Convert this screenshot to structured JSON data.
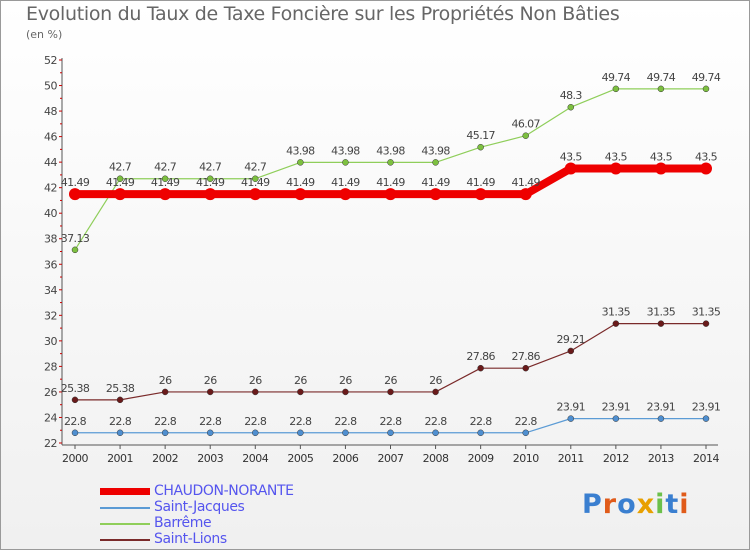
{
  "title": "Evolution du Taux de Taxe Foncière sur les Propriétés Non Bâties",
  "unit_label": "(en %)",
  "logo": {
    "letters": [
      "P",
      "r",
      "o",
      "x",
      "i",
      "t",
      "i"
    ],
    "colors": [
      "#3a7fd0",
      "#e05b1a",
      "#3a7fd0",
      "#e8a000",
      "#6cc04a",
      "#3a7fd0",
      "#e05b1a"
    ]
  },
  "chart_data": {
    "type": "line",
    "x": [
      "2000",
      "2001",
      "2002",
      "2003",
      "2004",
      "2005",
      "2006",
      "2007",
      "2008",
      "2009",
      "2010",
      "2011",
      "2012",
      "2013",
      "2014"
    ],
    "ylim": [
      22,
      52
    ],
    "yticks": [
      "22",
      "24",
      "26",
      "28",
      "30",
      "32",
      "34",
      "36",
      "38",
      "40",
      "42",
      "44",
      "46",
      "48",
      "50",
      "52"
    ],
    "grid": false,
    "legend": "bottom-left",
    "series": [
      {
        "name": "CHAUDON-NORANTE",
        "color": "#ee0000",
        "values": [
          41.49,
          41.49,
          41.49,
          41.49,
          41.49,
          41.49,
          41.49,
          41.49,
          41.49,
          41.49,
          41.49,
          43.5,
          43.5,
          43.5,
          43.5
        ],
        "labels": [
          "41.49",
          "41.49",
          "41.49",
          "41.49",
          "41.49",
          "41.49",
          "41.49",
          "41.49",
          "41.49",
          "41.49",
          "41.49",
          "43.5",
          "43.5",
          "43.5",
          "43.5"
        ]
      },
      {
        "name": "Saint-Jacques",
        "color": "#5b9bd5",
        "values": [
          22.8,
          22.8,
          22.8,
          22.8,
          22.8,
          22.8,
          22.8,
          22.8,
          22.8,
          22.8,
          22.8,
          23.91,
          23.91,
          23.91,
          23.91
        ],
        "labels": [
          "22.8",
          "22.8",
          "22.8",
          "22.8",
          "22.8",
          "22.8",
          "22.8",
          "22.8",
          "22.8",
          "22.8",
          "22.8",
          "23.91",
          "23.91",
          "23.91",
          "23.91"
        ]
      },
      {
        "name": "Barrême",
        "color": "#8fce5a",
        "values": [
          37.13,
          42.7,
          42.7,
          42.7,
          42.7,
          43.98,
          43.98,
          43.98,
          43.98,
          45.17,
          46.07,
          48.3,
          49.74,
          49.74,
          49.74
        ],
        "labels": [
          "37.13",
          "42.7",
          "42.7",
          "42.7",
          "42.7",
          "43.98",
          "43.98",
          "43.98",
          "43.98",
          "45.17",
          "46.07",
          "48.3",
          "49.74",
          "49.74",
          "49.74"
        ]
      },
      {
        "name": "Saint-Lions",
        "color": "#7a2a2a",
        "values": [
          25.38,
          25.38,
          26,
          26,
          26,
          26,
          26,
          26,
          26,
          27.86,
          27.86,
          29.21,
          31.35,
          31.35,
          31.35
        ],
        "labels": [
          "25.38",
          "25.38",
          "26",
          "26",
          "26",
          "26",
          "26",
          "26",
          "26",
          "27.86",
          "27.86",
          "29.21",
          "31.35",
          "31.35",
          "31.35"
        ]
      }
    ]
  }
}
